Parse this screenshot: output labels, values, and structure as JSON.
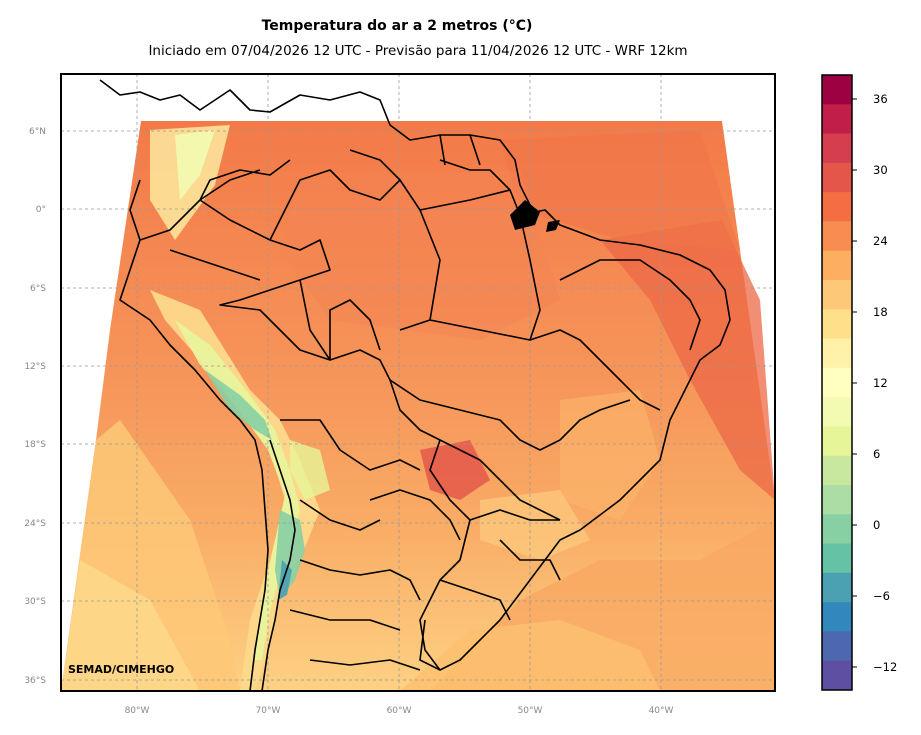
{
  "title": "Temperatura do ar a 2 metros (°C)",
  "subtitle": "Iniciado em 07/04/2026 12 UTC - Previsão para 11/04/2026 12 UTC - WRF 12km",
  "credit": "SEMAD/CIMEHGO",
  "lat_labels": [
    "6°N",
    "0°",
    "6°S",
    "12°S",
    "18°S",
    "24°S",
    "30°S",
    "36°S"
  ],
  "lon_labels": [
    "80°W",
    "70°W",
    "60°W",
    "50°W",
    "40°W"
  ],
  "colorbar": {
    "ticks": [
      "36",
      "30",
      "24",
      "18",
      "12",
      "6",
      "0",
      "−6",
      "−12"
    ],
    "colors": [
      "#9e0142",
      "#c11f4a",
      "#d53e4f",
      "#e45649",
      "#f46d43",
      "#f88d52",
      "#fdae61",
      "#fdc877",
      "#fee08b",
      "#fff2a8",
      "#ffffbf",
      "#f3fab1",
      "#e6f598",
      "#c7e89e",
      "#abdda4",
      "#88cfa4",
      "#66c2a5",
      "#4ba0b1",
      "#3288bd",
      "#4d68ae",
      "#5e4fa2"
    ]
  },
  "colors": {
    "land_warm": "#f07c4a",
    "land_mid": "#f89e5d",
    "land_cool": "#fdd387",
    "andes_cold": "#c8e89d",
    "andes_coldest": "#4ba0b1"
  }
}
